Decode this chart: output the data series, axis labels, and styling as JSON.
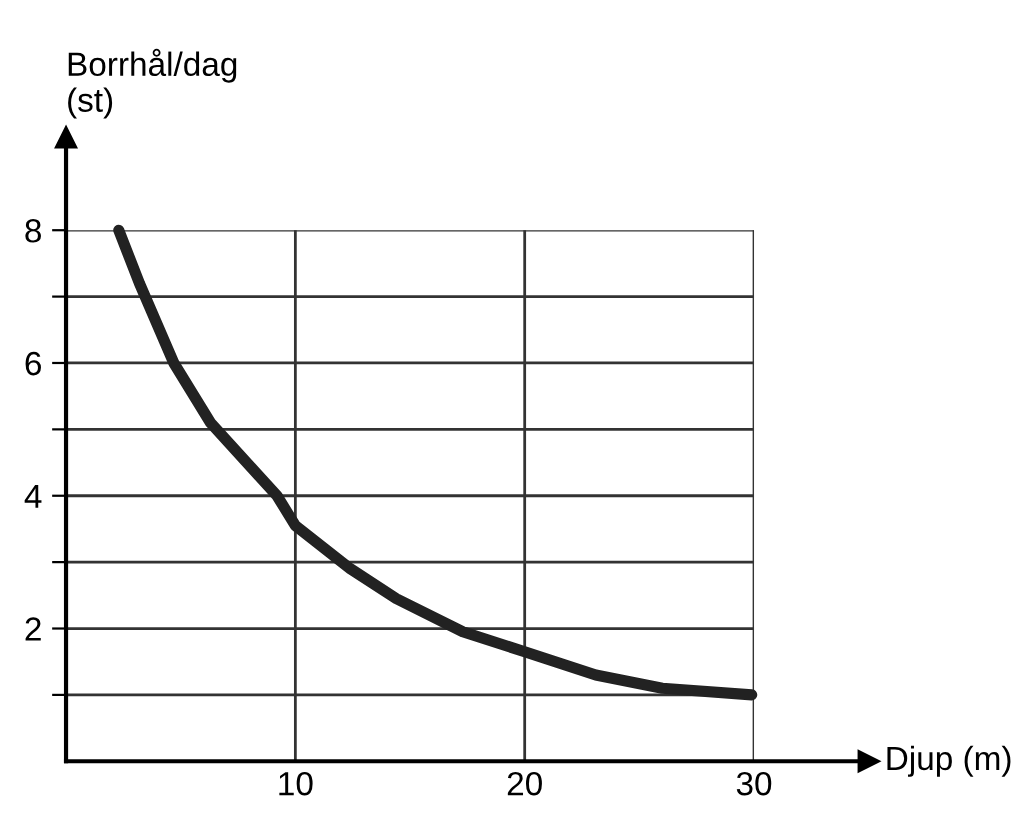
{
  "chart_data": {
    "type": "line",
    "xlabel": "Djup (m)",
    "ylabel": "Borrhål/dag\n(st)",
    "series": [
      {
        "color": "#222222",
        "x": [
          2.3,
          3.2,
          4.7,
          6.3,
          9.2,
          10,
          12.4,
          14.4,
          17.3,
          20,
          23.1,
          26,
          29.9
        ],
        "values": [
          8,
          7.2,
          6,
          5.1,
          4,
          3.55,
          2.9,
          2.45,
          1.95,
          1.65,
          1.3,
          1.1,
          1.0
        ]
      }
    ],
    "xlim": [
      0,
      35
    ],
    "ylim": [
      0,
      9.4
    ],
    "xticks": [
      10,
      20,
      30
    ],
    "yticks": [
      {
        "value": 1,
        "label": null
      },
      2,
      {
        "value": 3,
        "label": null
      },
      4,
      {
        "value": 5,
        "label": null
      },
      6,
      {
        "value": 7,
        "label": null
      },
      8
    ],
    "grid": true,
    "legend": false
  }
}
